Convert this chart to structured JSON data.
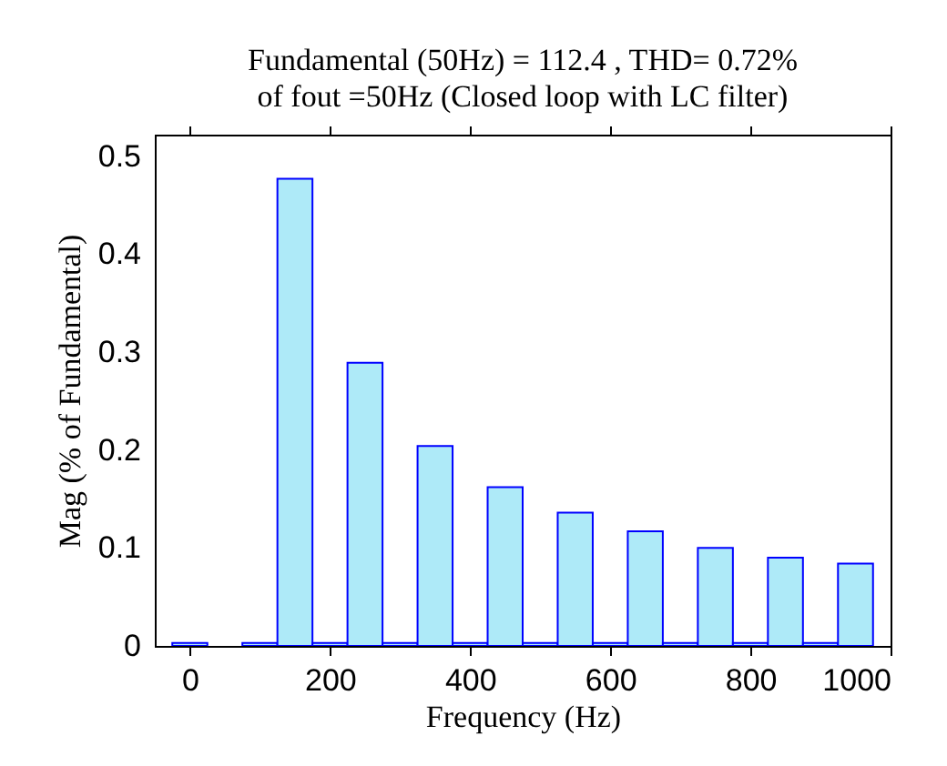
{
  "chart_data": {
    "type": "bar",
    "title": "Fundamental (50Hz) = 112.4 , THD= 0.72%",
    "subtitle": "of fout =50Hz (Closed loop with LC filter)",
    "xlabel": "Frequency (Hz)",
    "ylabel": "Mag (% of Fundamental)",
    "x": [
      0,
      50,
      100,
      150,
      200,
      250,
      300,
      350,
      400,
      450,
      500,
      550,
      600,
      650,
      700,
      750,
      800,
      850,
      900,
      950
    ],
    "values": [
      0.003,
      null,
      0.003,
      0.477,
      0.003,
      0.289,
      0.003,
      0.204,
      0.003,
      0.162,
      0.003,
      0.136,
      0.003,
      0.117,
      0.003,
      0.1,
      0.003,
      0.09,
      0.003,
      0.084
    ],
    "color": "#aeeaf8",
    "xlim": [
      -50,
      1000
    ],
    "xticks": [
      0,
      200,
      400,
      600,
      800,
      1000
    ],
    "ylim": [
      0,
      0.522
    ],
    "yticks": [
      0,
      0.1,
      0.2,
      0.3,
      0.4,
      0.5
    ],
    "grid": false
  }
}
